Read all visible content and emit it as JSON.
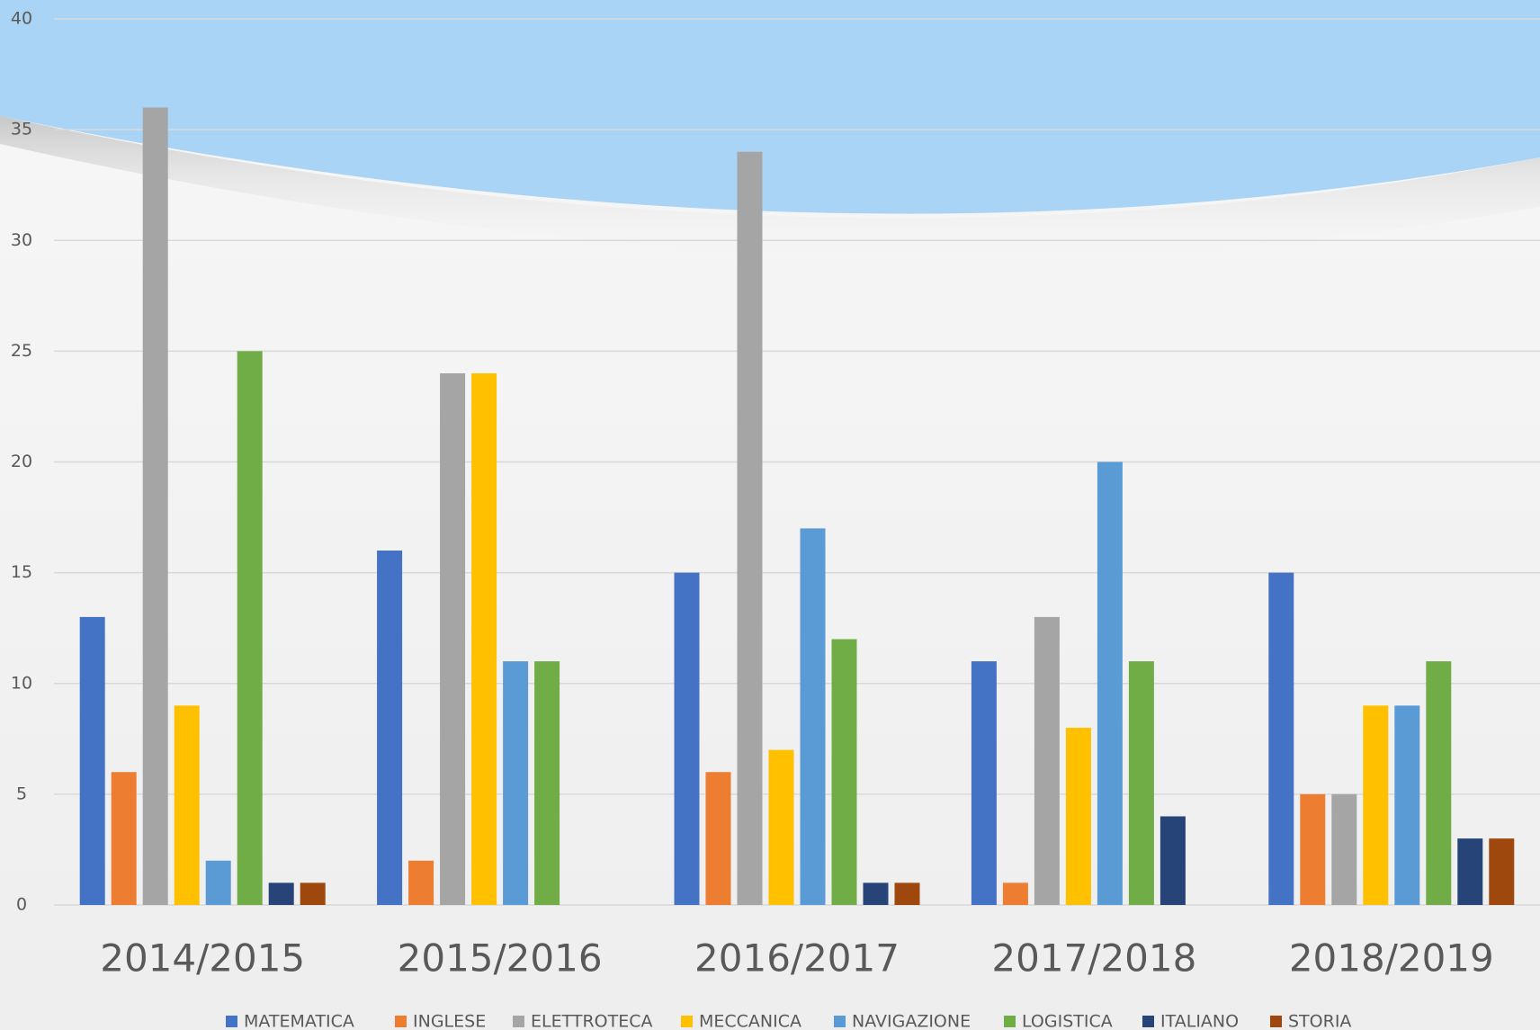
{
  "chart_data": {
    "type": "bar",
    "categories": [
      "2014/2015",
      "2015/2016",
      "2016/2017",
      "2017/2018",
      "2018/2019"
    ],
    "series": [
      {
        "name": "MATEMATICA",
        "color": "#4472c4",
        "values": [
          13,
          16,
          15,
          11,
          15
        ]
      },
      {
        "name": "INGLESE",
        "color": "#ed7d31",
        "values": [
          6,
          2,
          6,
          1,
          5
        ]
      },
      {
        "name": "ELETTROTECA",
        "color": "#a5a5a5",
        "values": [
          36,
          24,
          34,
          13,
          5
        ]
      },
      {
        "name": "MECCANICA",
        "color": "#ffc000",
        "values": [
          9,
          24,
          7,
          8,
          9
        ]
      },
      {
        "name": "NAVIGAZIONE",
        "color": "#5b9bd5",
        "values": [
          2,
          11,
          17,
          20,
          9
        ]
      },
      {
        "name": "LOGISTICA",
        "color": "#70ad47",
        "values": [
          25,
          11,
          12,
          11,
          11
        ]
      },
      {
        "name": "ITALIANO",
        "color": "#264478",
        "values": [
          1,
          0,
          1,
          4,
          3
        ]
      },
      {
        "name": "STORIA",
        "color": "#9e480e",
        "values": [
          1,
          0,
          1,
          0,
          3
        ]
      }
    ],
    "ylim": [
      0,
      40
    ],
    "yticks": [
      0,
      5,
      10,
      15,
      20,
      25,
      30,
      35,
      40
    ],
    "grid": true,
    "legend": "bottom"
  }
}
